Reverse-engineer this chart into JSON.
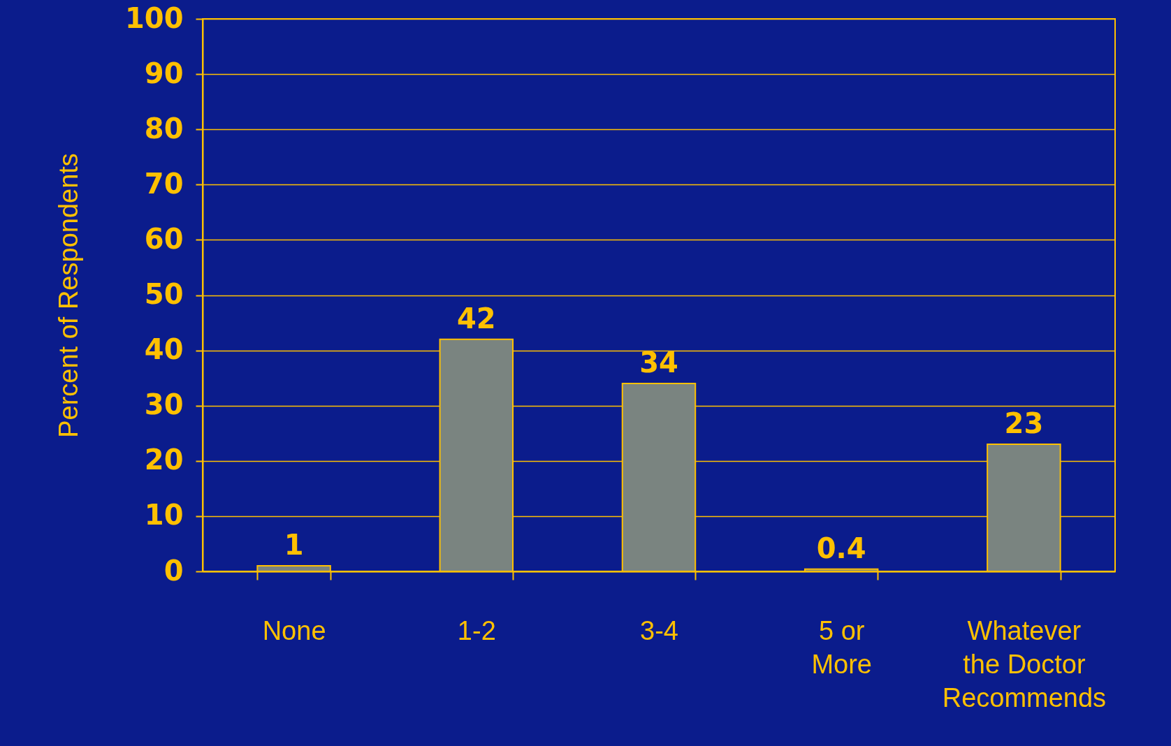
{
  "chart_data": {
    "type": "bar",
    "ylabel": "Percent of Respondents",
    "categories": [
      "None",
      "1-2",
      "3-4",
      "5 or\nMore",
      "Whatever\nthe Doctor\nRecommends"
    ],
    "values": [
      1,
      42,
      34,
      0.4,
      23
    ],
    "color": "#7a8480",
    "ylim": [
      0,
      100
    ],
    "yticks": [
      0,
      10,
      20,
      30,
      40,
      50,
      60,
      70,
      80,
      90,
      100
    ],
    "grid": "y",
    "data_labels": true
  }
}
